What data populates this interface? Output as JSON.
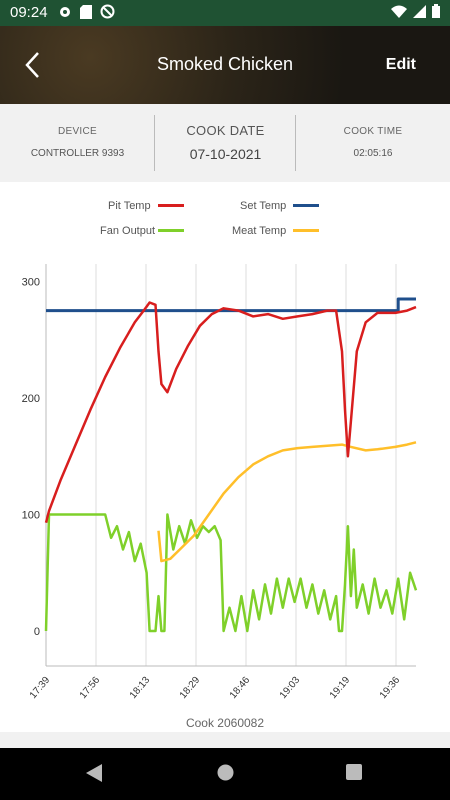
{
  "status": {
    "time": "09:24"
  },
  "header": {
    "title": "Smoked Chicken",
    "edit_label": "Edit"
  },
  "info": {
    "device_label": "DEVICE",
    "device_value": "CONTROLLER 9393",
    "cook_date_label": "COOK DATE",
    "cook_date_value": "07-10-2021",
    "cook_time_label": "COOK TIME",
    "cook_time_value": "02:05:16"
  },
  "legend": {
    "pit_temp": "Pit Temp",
    "set_temp": "Set Temp",
    "fan_output": "Fan Output",
    "meat_temp": "Meat Temp"
  },
  "colors": {
    "pit": "#d81e1e",
    "set": "#1f4f8c",
    "fan": "#7fd02a",
    "meat": "#ffbf2a",
    "brand": "#1f5233"
  },
  "cook_label": "Cook 2060082",
  "chart_data": {
    "type": "line",
    "x_ticks": [
      "17:39",
      "17:56",
      "18:13",
      "18:29",
      "18:46",
      "19:03",
      "19:19",
      "19:36"
    ],
    "y_ticks": [
      0,
      100,
      200,
      300
    ],
    "ylim": [
      -30,
      315
    ],
    "xlim_minutes": [
      0,
      125
    ],
    "grid": "vertical",
    "series": [
      {
        "name": "Pit Temp",
        "points": [
          [
            0,
            93
          ],
          [
            1,
            103
          ],
          [
            5,
            130
          ],
          [
            10,
            160
          ],
          [
            15,
            190
          ],
          [
            20,
            218
          ],
          [
            25,
            243
          ],
          [
            30,
            265
          ],
          [
            33,
            275
          ],
          [
            35,
            282
          ],
          [
            37,
            280
          ],
          [
            38,
            240
          ],
          [
            39,
            212
          ],
          [
            41,
            205
          ],
          [
            44,
            225
          ],
          [
            48,
            245
          ],
          [
            52,
            262
          ],
          [
            56,
            272
          ],
          [
            60,
            277
          ],
          [
            65,
            275
          ],
          [
            70,
            270
          ],
          [
            75,
            272
          ],
          [
            80,
            268
          ],
          [
            85,
            270
          ],
          [
            90,
            272
          ],
          [
            95,
            275
          ],
          [
            98,
            275
          ],
          [
            100,
            240
          ],
          [
            101,
            190
          ],
          [
            102,
            150
          ],
          [
            103,
            180
          ],
          [
            105,
            240
          ],
          [
            108,
            265
          ],
          [
            112,
            273
          ],
          [
            118,
            273
          ],
          [
            122,
            275
          ],
          [
            125,
            278
          ]
        ]
      },
      {
        "name": "Set Temp",
        "points": [
          [
            0,
            275
          ],
          [
            119,
            275
          ],
          [
            119,
            285
          ],
          [
            125,
            285
          ]
        ]
      },
      {
        "name": "Meat Temp",
        "points": [
          [
            38,
            86
          ],
          [
            39,
            60
          ],
          [
            42,
            62
          ],
          [
            46,
            72
          ],
          [
            50,
            82
          ],
          [
            55,
            100
          ],
          [
            60,
            118
          ],
          [
            65,
            132
          ],
          [
            70,
            143
          ],
          [
            75,
            150
          ],
          [
            80,
            155
          ],
          [
            85,
            157
          ],
          [
            90,
            158
          ],
          [
            95,
            159
          ],
          [
            100,
            160
          ],
          [
            103,
            158
          ],
          [
            108,
            155
          ],
          [
            112,
            156
          ],
          [
            118,
            158
          ],
          [
            122,
            160
          ],
          [
            125,
            162
          ]
        ]
      },
      {
        "name": "Fan Output",
        "points": [
          [
            0,
            0
          ],
          [
            1,
            100
          ],
          [
            20,
            100
          ],
          [
            22,
            80
          ],
          [
            24,
            90
          ],
          [
            26,
            70
          ],
          [
            28,
            85
          ],
          [
            30,
            60
          ],
          [
            32,
            75
          ],
          [
            34,
            50
          ],
          [
            35,
            0
          ],
          [
            37,
            0
          ],
          [
            38,
            30
          ],
          [
            39,
            0
          ],
          [
            40,
            0
          ],
          [
            41,
            100
          ],
          [
            43,
            70
          ],
          [
            45,
            90
          ],
          [
            47,
            75
          ],
          [
            49,
            95
          ],
          [
            51,
            80
          ],
          [
            53,
            90
          ],
          [
            55,
            85
          ],
          [
            57,
            90
          ],
          [
            59,
            78
          ],
          [
            60,
            0
          ],
          [
            62,
            20
          ],
          [
            64,
            0
          ],
          [
            66,
            30
          ],
          [
            68,
            0
          ],
          [
            70,
            35
          ],
          [
            72,
            10
          ],
          [
            74,
            40
          ],
          [
            76,
            15
          ],
          [
            78,
            45
          ],
          [
            80,
            20
          ],
          [
            82,
            45
          ],
          [
            84,
            25
          ],
          [
            86,
            45
          ],
          [
            88,
            20
          ],
          [
            90,
            40
          ],
          [
            92,
            15
          ],
          [
            94,
            35
          ],
          [
            96,
            10
          ],
          [
            98,
            30
          ],
          [
            99,
            0
          ],
          [
            100,
            0
          ],
          [
            101,
            40
          ],
          [
            102,
            90
          ],
          [
            103,
            30
          ],
          [
            104,
            70
          ],
          [
            105,
            20
          ],
          [
            107,
            40
          ],
          [
            109,
            15
          ],
          [
            111,
            45
          ],
          [
            113,
            20
          ],
          [
            115,
            35
          ],
          [
            117,
            15
          ],
          [
            119,
            45
          ],
          [
            121,
            10
          ],
          [
            123,
            50
          ],
          [
            125,
            35
          ]
        ]
      }
    ]
  }
}
